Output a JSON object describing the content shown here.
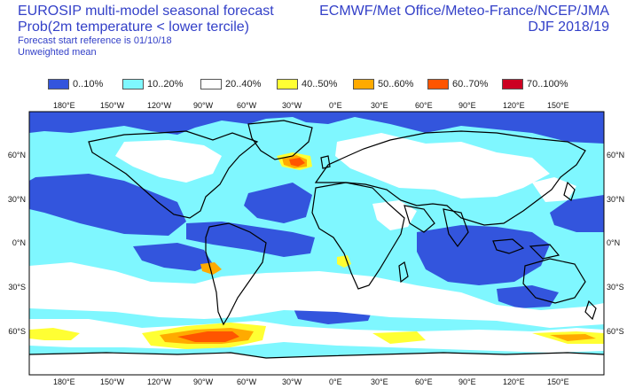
{
  "header": {
    "title": "EUROSIP multi-model seasonal forecast",
    "subtitle": "Prob(2m temperature < lower tercile)",
    "forecast_start": "Forecast start reference is 01/10/18",
    "weighting": "Unweighted mean",
    "centres": "ECMWF/Met Office/Meteo-France/NCEP/JMA",
    "season": "DJF 2018/19"
  },
  "legend": [
    {
      "label": "0..10%",
      "color": "#3355dd"
    },
    {
      "label": "10..20%",
      "color": "#7ff7ff"
    },
    {
      "label": "20..40%",
      "color": "#ffffff"
    },
    {
      "label": "40..50%",
      "color": "#ffff33"
    },
    {
      "label": "50..60%",
      "color": "#ffaa00"
    },
    {
      "label": "60..70%",
      "color": "#ff5500"
    },
    {
      "label": "70..100%",
      "color": "#cc0022"
    }
  ],
  "axes": {
    "lon_labels": [
      "180°E",
      "150°W",
      "120°W",
      "90°W",
      "60°W",
      "30°W",
      "0°E",
      "30°E",
      "60°E",
      "90°E",
      "120°E",
      "150°E"
    ],
    "lat_labels": [
      "60°N",
      "30°N",
      "0°N",
      "30°S",
      "60°S"
    ]
  }
}
